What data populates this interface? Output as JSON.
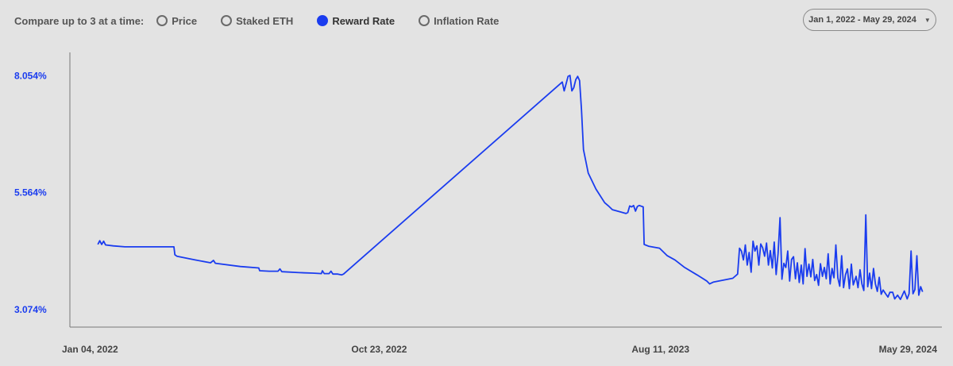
{
  "controls": {
    "compare_label": "Compare up to 3 at a time:",
    "metrics": [
      {
        "label": "Price",
        "selected": false
      },
      {
        "label": "Staked ETH",
        "selected": false
      },
      {
        "label": "Reward Rate",
        "selected": true
      },
      {
        "label": "Inflation Rate",
        "selected": false
      }
    ],
    "date_range": "Jan 1, 2022 - May 29, 2024",
    "dropdown_icon": "chevron-down-icon"
  },
  "chart_data": {
    "type": "line",
    "series": [
      {
        "color": "#1a3cef",
        "points": [
          [
            "2022-01-04",
            4.46
          ],
          [
            "2022-01-06",
            4.54
          ],
          [
            "2022-01-08",
            4.46
          ],
          [
            "2022-01-10",
            4.53
          ],
          [
            "2022-01-12",
            4.45
          ],
          [
            "2022-01-20",
            4.43
          ],
          [
            "2022-02-01",
            4.41
          ],
          [
            "2022-03-01",
            4.41
          ],
          [
            "2022-03-24",
            4.41
          ],
          [
            "2022-03-25",
            4.24
          ],
          [
            "2022-03-27",
            4.21
          ],
          [
            "2022-04-15",
            4.13
          ],
          [
            "2022-05-01",
            4.07
          ],
          [
            "2022-05-04",
            4.12
          ],
          [
            "2022-05-06",
            4.06
          ],
          [
            "2022-06-01",
            3.99
          ],
          [
            "2022-06-20",
            3.96
          ],
          [
            "2022-06-21",
            3.9
          ],
          [
            "2022-07-01",
            3.89
          ],
          [
            "2022-07-10",
            3.89
          ],
          [
            "2022-07-12",
            3.94
          ],
          [
            "2022-07-14",
            3.88
          ],
          [
            "2022-08-01",
            3.86
          ],
          [
            "2022-08-15",
            3.85
          ],
          [
            "2022-08-24",
            3.84
          ],
          [
            "2022-08-25",
            3.9
          ],
          [
            "2022-08-27",
            3.84
          ],
          [
            "2022-09-01",
            3.84
          ],
          [
            "2022-09-03",
            3.89
          ],
          [
            "2022-09-05",
            3.83
          ],
          [
            "2022-09-10",
            3.83
          ],
          [
            "2022-09-14",
            3.81
          ],
          [
            "2022-09-16",
            3.83
          ],
          [
            "2023-05-01",
            7.92
          ],
          [
            "2023-05-03",
            7.73
          ],
          [
            "2023-05-05",
            7.88
          ],
          [
            "2023-05-07",
            8.04
          ],
          [
            "2023-05-09",
            8.06
          ],
          [
            "2023-05-11",
            7.73
          ],
          [
            "2023-05-13",
            7.8
          ],
          [
            "2023-05-15",
            7.97
          ],
          [
            "2023-05-17",
            8.04
          ],
          [
            "2023-05-19",
            7.95
          ],
          [
            "2023-05-21",
            7.33
          ],
          [
            "2023-05-23",
            6.48
          ],
          [
            "2023-05-28",
            5.98
          ],
          [
            "2023-06-05",
            5.64
          ],
          [
            "2023-06-14",
            5.35
          ],
          [
            "2023-06-18",
            5.28
          ],
          [
            "2023-06-22",
            5.2
          ],
          [
            "2023-07-01",
            5.15
          ],
          [
            "2023-07-06",
            5.12
          ],
          [
            "2023-07-08",
            5.14
          ],
          [
            "2023-07-10",
            5.28
          ],
          [
            "2023-07-12",
            5.26
          ],
          [
            "2023-07-14",
            5.29
          ],
          [
            "2023-07-16",
            5.17
          ],
          [
            "2023-07-18",
            5.27
          ],
          [
            "2023-07-20",
            5.29
          ],
          [
            "2023-07-24",
            5.26
          ],
          [
            "2023-07-25",
            4.46
          ],
          [
            "2023-07-30",
            4.42
          ],
          [
            "2023-08-10",
            4.38
          ],
          [
            "2023-08-18",
            4.22
          ],
          [
            "2023-08-26",
            4.13
          ],
          [
            "2023-09-05",
            3.97
          ],
          [
            "2023-09-18",
            3.81
          ],
          [
            "2023-09-28",
            3.68
          ],
          [
            "2023-10-01",
            3.62
          ],
          [
            "2023-10-05",
            3.66
          ],
          [
            "2023-10-15",
            3.7
          ],
          [
            "2023-10-25",
            3.74
          ],
          [
            "2023-10-30",
            3.83
          ],
          [
            "2023-11-01",
            4.38
          ],
          [
            "2023-11-03",
            4.32
          ],
          [
            "2023-11-05",
            4.13
          ],
          [
            "2023-11-07",
            4.45
          ],
          [
            "2023-11-09",
            4.02
          ],
          [
            "2023-11-11",
            4.29
          ],
          [
            "2023-11-13",
            3.87
          ],
          [
            "2023-11-15",
            4.53
          ],
          [
            "2023-11-17",
            4.32
          ],
          [
            "2023-11-19",
            4.43
          ],
          [
            "2023-11-21",
            4.02
          ],
          [
            "2023-11-23",
            4.47
          ],
          [
            "2023-11-25",
            4.39
          ],
          [
            "2023-11-27",
            4.21
          ],
          [
            "2023-11-29",
            4.49
          ],
          [
            "2023-12-01",
            4.02
          ],
          [
            "2023-12-03",
            4.33
          ],
          [
            "2023-12-05",
            3.96
          ],
          [
            "2023-12-07",
            4.51
          ],
          [
            "2023-12-09",
            3.82
          ],
          [
            "2023-12-11",
            4.26
          ],
          [
            "2023-12-13",
            5.03
          ],
          [
            "2023-12-15",
            3.72
          ],
          [
            "2023-12-17",
            4.06
          ],
          [
            "2023-12-19",
            3.97
          ],
          [
            "2023-12-21",
            4.32
          ],
          [
            "2023-12-23",
            3.68
          ],
          [
            "2023-12-25",
            4.14
          ],
          [
            "2023-12-27",
            4.2
          ],
          [
            "2023-12-29",
            3.73
          ],
          [
            "2023-12-31",
            4.07
          ],
          [
            "2024-01-02",
            3.65
          ],
          [
            "2024-01-04",
            4.02
          ],
          [
            "2024-01-06",
            3.62
          ],
          [
            "2024-01-08",
            4.37
          ],
          [
            "2024-01-10",
            3.78
          ],
          [
            "2024-01-12",
            4.04
          ],
          [
            "2024-01-14",
            3.77
          ],
          [
            "2024-01-16",
            4.14
          ],
          [
            "2024-01-18",
            3.69
          ],
          [
            "2024-01-20",
            3.82
          ],
          [
            "2024-01-22",
            3.59
          ],
          [
            "2024-01-24",
            4.05
          ],
          [
            "2024-01-26",
            3.78
          ],
          [
            "2024-01-28",
            3.97
          ],
          [
            "2024-01-30",
            3.73
          ],
          [
            "2024-02-01",
            4.26
          ],
          [
            "2024-02-03",
            3.62
          ],
          [
            "2024-02-05",
            3.95
          ],
          [
            "2024-02-07",
            3.75
          ],
          [
            "2024-02-09",
            4.45
          ],
          [
            "2024-02-11",
            3.75
          ],
          [
            "2024-02-13",
            3.57
          ],
          [
            "2024-02-15",
            4.22
          ],
          [
            "2024-02-17",
            3.54
          ],
          [
            "2024-02-19",
            3.82
          ],
          [
            "2024-02-21",
            3.94
          ],
          [
            "2024-02-23",
            3.52
          ],
          [
            "2024-02-25",
            4.04
          ],
          [
            "2024-02-27",
            3.6
          ],
          [
            "2024-03-01",
            3.78
          ],
          [
            "2024-03-03",
            3.54
          ],
          [
            "2024-03-05",
            3.92
          ],
          [
            "2024-03-07",
            3.62
          ],
          [
            "2024-03-09",
            3.48
          ],
          [
            "2024-03-11",
            5.09
          ],
          [
            "2024-03-13",
            3.56
          ],
          [
            "2024-03-15",
            3.85
          ],
          [
            "2024-03-17",
            3.52
          ],
          [
            "2024-03-19",
            3.95
          ],
          [
            "2024-03-21",
            3.62
          ],
          [
            "2024-03-23",
            3.46
          ],
          [
            "2024-03-25",
            3.76
          ],
          [
            "2024-03-27",
            3.4
          ],
          [
            "2024-03-29",
            3.49
          ],
          [
            "2024-04-01",
            3.4
          ],
          [
            "2024-04-03",
            3.34
          ],
          [
            "2024-04-05",
            3.44
          ],
          [
            "2024-04-08",
            3.44
          ],
          [
            "2024-04-10",
            3.3
          ],
          [
            "2024-04-13",
            3.38
          ],
          [
            "2024-04-16",
            3.29
          ],
          [
            "2024-04-20",
            3.47
          ],
          [
            "2024-04-23",
            3.3
          ],
          [
            "2024-04-25",
            3.41
          ],
          [
            "2024-04-27",
            4.32
          ],
          [
            "2024-04-29",
            3.41
          ],
          [
            "2024-05-01",
            3.5
          ],
          [
            "2024-05-03",
            4.22
          ],
          [
            "2024-05-05",
            3.38
          ],
          [
            "2024-05-07",
            3.56
          ],
          [
            "2024-05-09",
            3.45
          ]
        ]
      }
    ],
    "yticks": [
      "3.074%",
      "5.564%",
      "8.054%"
    ],
    "ytick_values": [
      3.074,
      5.564,
      8.054
    ],
    "ylim": [
      2.7,
      8.55
    ],
    "xticks": [
      "Jan 04, 2022",
      "Oct 23, 2022",
      "Aug 11, 2023",
      "May 29, 2024"
    ],
    "xtick_dates": [
      "2022-01-04",
      "2022-10-23",
      "2023-08-11",
      "2024-05-29"
    ],
    "xlim": [
      "2021-12-06",
      "2024-05-29"
    ],
    "legend": "none",
    "grid": false
  }
}
